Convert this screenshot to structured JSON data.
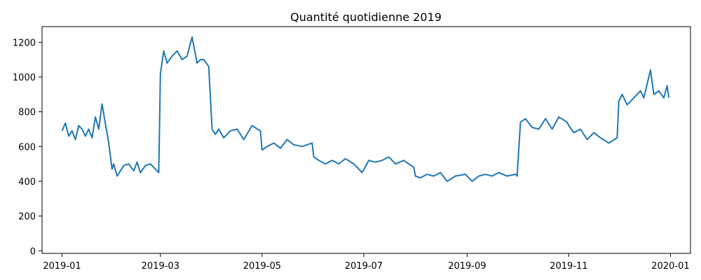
{
  "chart_data": {
    "type": "line",
    "title": "Quantité quotidienne 2019",
    "xlabel": "",
    "ylabel": "",
    "xlim": [
      "2018-12-20",
      "2020-01-13"
    ],
    "ylim": [
      -15,
      1290
    ],
    "x_ticks": [
      "2019-01",
      "2019-03",
      "2019-05",
      "2019-07",
      "2019-09",
      "2019-11",
      "2020-01"
    ],
    "y_ticks": [
      0,
      200,
      400,
      600,
      800,
      1000,
      1200
    ],
    "grid": false,
    "legend": "none",
    "series": [
      {
        "color": "#1f77b4",
        "x": [
          "2019-01-01",
          "2019-01-03",
          "2019-01-05",
          "2019-01-07",
          "2019-01-09",
          "2019-01-11",
          "2019-01-13",
          "2019-01-15",
          "2019-01-17",
          "2019-01-19",
          "2019-01-21",
          "2019-01-23",
          "2019-01-25",
          "2019-01-27",
          "2019-01-29",
          "2019-01-31",
          "2019-02-01",
          "2019-02-03",
          "2019-02-05",
          "2019-02-07",
          "2019-02-10",
          "2019-02-13",
          "2019-02-15",
          "2019-02-17",
          "2019-02-20",
          "2019-02-23",
          "2019-02-26",
          "2019-02-28",
          "2019-03-01",
          "2019-03-03",
          "2019-03-05",
          "2019-03-08",
          "2019-03-11",
          "2019-03-14",
          "2019-03-17",
          "2019-03-20",
          "2019-03-23",
          "2019-03-25",
          "2019-03-27",
          "2019-03-30",
          "2019-04-01",
          "2019-04-03",
          "2019-04-05",
          "2019-04-08",
          "2019-04-12",
          "2019-04-16",
          "2019-04-20",
          "2019-04-25",
          "2019-04-30",
          "2019-05-01",
          "2019-05-04",
          "2019-05-08",
          "2019-05-12",
          "2019-05-16",
          "2019-05-20",
          "2019-05-25",
          "2019-05-31",
          "2019-06-01",
          "2019-06-04",
          "2019-06-08",
          "2019-06-12",
          "2019-06-16",
          "2019-06-20",
          "2019-06-25",
          "2019-06-30",
          "2019-07-04",
          "2019-07-08",
          "2019-07-12",
          "2019-07-16",
          "2019-07-20",
          "2019-07-25",
          "2019-07-31",
          "2019-08-01",
          "2019-08-04",
          "2019-08-08",
          "2019-08-12",
          "2019-08-16",
          "2019-08-20",
          "2019-08-25",
          "2019-08-31",
          "2019-09-04",
          "2019-09-08",
          "2019-09-12",
          "2019-09-16",
          "2019-09-20",
          "2019-09-25",
          "2019-09-30",
          "2019-10-01",
          "2019-10-03",
          "2019-10-06",
          "2019-10-10",
          "2019-10-14",
          "2019-10-18",
          "2019-10-22",
          "2019-10-26",
          "2019-10-31",
          "2019-11-01",
          "2019-11-04",
          "2019-11-08",
          "2019-11-12",
          "2019-11-16",
          "2019-11-20",
          "2019-11-25",
          "2019-11-30",
          "2019-12-01",
          "2019-12-03",
          "2019-12-06",
          "2019-12-10",
          "2019-12-14",
          "2019-12-16",
          "2019-12-18",
          "2019-12-20",
          "2019-12-22",
          "2019-12-25",
          "2019-12-28",
          "2019-12-30",
          "2019-12-31"
        ],
        "values": [
          690,
          735,
          660,
          690,
          640,
          720,
          700,
          660,
          700,
          650,
          770,
          700,
          845,
          730,
          620,
          470,
          500,
          430,
          460,
          490,
          500,
          460,
          510,
          450,
          490,
          500,
          470,
          450,
          1020,
          1150,
          1080,
          1120,
          1150,
          1100,
          1120,
          1230,
          1080,
          1100,
          1100,
          1060,
          700,
          670,
          700,
          650,
          690,
          700,
          640,
          720,
          690,
          580,
          600,
          620,
          590,
          640,
          610,
          600,
          620,
          540,
          520,
          500,
          520,
          500,
          530,
          500,
          450,
          520,
          510,
          520,
          540,
          500,
          520,
          480,
          430,
          420,
          440,
          430,
          450,
          400,
          430,
          440,
          400,
          430,
          440,
          430,
          450,
          430,
          440,
          430,
          740,
          760,
          710,
          700,
          760,
          700,
          770,
          740,
          720,
          680,
          700,
          640,
          680,
          650,
          620,
          650,
          860,
          900,
          840,
          880,
          920,
          880,
          960,
          1040,
          900,
          920,
          880,
          950,
          880
        ]
      }
    ]
  }
}
